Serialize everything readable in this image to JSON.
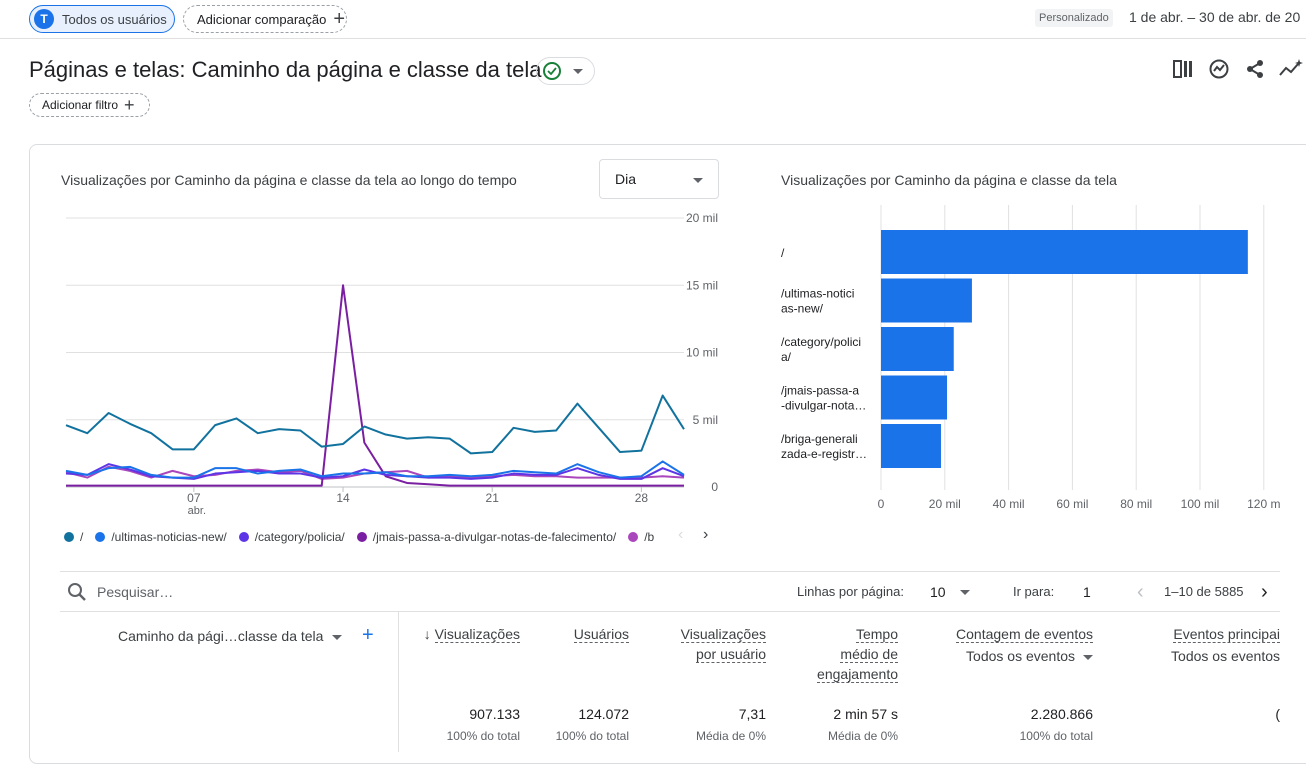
{
  "top_bar": {
    "segment_initial": "T",
    "segment_label": "Todos os usuários",
    "compare_label": "Adicionar comparação",
    "custom_badge": "Personalizado",
    "date_range": "1 de abr. – 30 de abr. de 20"
  },
  "header": {
    "title": "Páginas e telas: Caminho da página e classe da tela",
    "filter_label": "Adicionar filtro"
  },
  "line_chart_panel": {
    "title": "Visualizações por Caminho da página e classe da tela ao longo do tempo",
    "granularity": "Dia"
  },
  "bar_chart_panel": {
    "title": "Visualizações por Caminho da página e classe da tela"
  },
  "chart_data": [
    {
      "type": "line",
      "title": "Visualizações por Caminho da página e classe da tela ao longo do tempo",
      "x": [
        1,
        2,
        3,
        4,
        5,
        6,
        7,
        8,
        9,
        10,
        11,
        12,
        13,
        14,
        15,
        16,
        17,
        18,
        19,
        20,
        21,
        22,
        23,
        24,
        25,
        26,
        27,
        28,
        29,
        30
      ],
      "x_ticks": [
        {
          "day": 7,
          "label": "07",
          "sub": "abr."
        },
        {
          "day": 14,
          "label": "14",
          "sub": ""
        },
        {
          "day": 21,
          "label": "21",
          "sub": ""
        },
        {
          "day": 28,
          "label": "28",
          "sub": ""
        }
      ],
      "y_ticks": [
        {
          "value": 0,
          "label": "0"
        },
        {
          "value": 5000,
          "label": "5 mil"
        },
        {
          "value": 10000,
          "label": "10 mil"
        },
        {
          "value": 15000,
          "label": "15 mil"
        },
        {
          "value": 20000,
          "label": "20 mil"
        }
      ],
      "ylim": [
        0,
        20000
      ],
      "series": [
        {
          "name": "/",
          "color": "#12729e",
          "values": [
            4600,
            4000,
            5500,
            4700,
            4000,
            2800,
            2800,
            4600,
            5100,
            4000,
            4300,
            4200,
            3000,
            3200,
            4500,
            3900,
            3600,
            3700,
            3600,
            2500,
            2600,
            4400,
            4100,
            4200,
            6200,
            4400,
            2600,
            2700,
            6800,
            4300
          ]
        },
        {
          "name": "/ultimas-noticias-new/",
          "color": "#1a73e8",
          "values": [
            1200,
            900,
            1400,
            1500,
            900,
            700,
            700,
            1400,
            1400,
            1000,
            1200,
            1300,
            800,
            1000,
            1000,
            1100,
            800,
            800,
            900,
            800,
            900,
            1200,
            1100,
            1000,
            1700,
            1100,
            700,
            800,
            1900,
            900
          ]
        },
        {
          "name": "/category/policia/",
          "color": "#5e35e6",
          "values": [
            1000,
            900,
            1700,
            1300,
            800,
            700,
            600,
            1000,
            1100,
            1200,
            1000,
            1000,
            700,
            800,
            1300,
            900,
            800,
            700,
            700,
            600,
            700,
            1000,
            900,
            900,
            1400,
            900,
            600,
            600,
            1400,
            800
          ]
        },
        {
          "name": "/jmais-passa-a-divulgar-notas-de-falecimento/",
          "color": "#7b1fa2",
          "values": [
            100,
            100,
            100,
            100,
            100,
            100,
            100,
            100,
            100,
            100,
            100,
            100,
            100,
            15000,
            3300,
            800,
            300,
            200,
            100,
            100,
            100,
            100,
            100,
            100,
            100,
            100,
            100,
            100,
            100,
            100
          ]
        },
        {
          "name": "/briga-generalizada-e-registrada/",
          "color": "#ab47bc",
          "values": [
            1100,
            700,
            1500,
            1200,
            700,
            1200,
            800,
            900,
            1200,
            1300,
            1100,
            1200,
            600,
            700,
            1000,
            1100,
            1200,
            700,
            800,
            700,
            800,
            900,
            800,
            800,
            700,
            700,
            700,
            700,
            800,
            700
          ]
        }
      ]
    },
    {
      "type": "bar",
      "orientation": "horizontal",
      "title": "Visualizações por Caminho da página e classe da tela",
      "categories": [
        "/",
        "/ultimas-noticias-new/",
        "/category/policia/",
        "/jmais-passa-a-divulgar-notas-de-falecimento/",
        "/briga-generalizada-e-registrada/"
      ],
      "category_labels": [
        [
          "/"
        ],
        [
          "/ultimas-notici",
          "as-new/"
        ],
        [
          "/category/polici",
          "a/"
        ],
        [
          "/jmais-passa-a",
          "-divulgar-nota…"
        ],
        [
          "/briga-generali",
          "zada-e-registr…"
        ]
      ],
      "values": [
        115000,
        28500,
        22800,
        20700,
        18800
      ],
      "x_ticks": [
        {
          "value": 0,
          "label": "0"
        },
        {
          "value": 20000,
          "label": "20 mil"
        },
        {
          "value": 40000,
          "label": "40 mil"
        },
        {
          "value": 60000,
          "label": "60 mil"
        },
        {
          "value": 80000,
          "label": "80 mil"
        },
        {
          "value": 100000,
          "label": "100 mil"
        },
        {
          "value": 120000,
          "label": "120 m"
        }
      ],
      "xlim": [
        0,
        120000
      ],
      "color": "#1a73e8"
    }
  ],
  "legend": {
    "items": [
      {
        "label": "/",
        "color": "#12729e"
      },
      {
        "label": "/ultimas-noticias-new/",
        "color": "#1a73e8"
      },
      {
        "label": "/category/policia/",
        "color": "#5e35e6"
      },
      {
        "label": "/jmais-passa-a-divulgar-notas-de-falecimento/",
        "color": "#7b1fa2"
      },
      {
        "label": "/b",
        "color": "#ab47bc"
      }
    ],
    "prev": "‹",
    "next": "›"
  },
  "table": {
    "search_placeholder": "Pesquisar…",
    "rows_per_page_label": "Linhas por página:",
    "rows_per_page_value": "10",
    "goto_label": "Ir para:",
    "goto_value": "1",
    "pagination_text": "1–10 de 5885",
    "dimension_header": "Caminho da pági…classe da tela",
    "columns": [
      {
        "lines": [
          "Visualizações"
        ],
        "sorted": true,
        "total": "907.133",
        "sub": "100% do total"
      },
      {
        "lines": [
          "Usuários"
        ],
        "sorted": false,
        "total": "124.072",
        "sub": "100% do total"
      },
      {
        "lines": [
          "Visualizações",
          "por usuário"
        ],
        "sorted": false,
        "total": "7,31",
        "sub": "Média de 0%"
      },
      {
        "lines": [
          "Tempo",
          "médio de",
          "engajamento"
        ],
        "sorted": false,
        "total": "2 min 57 s",
        "sub": "Média de 0%"
      },
      {
        "lines": [
          "Contagem de eventos"
        ],
        "sorted": false,
        "subhead": "Todos os eventos",
        "total": "2.280.866",
        "sub": "100% do total"
      },
      {
        "lines": [
          "Eventos principai"
        ],
        "sorted": false,
        "subhead": "Todos os eventos",
        "total": "(",
        "sub": ""
      }
    ]
  }
}
